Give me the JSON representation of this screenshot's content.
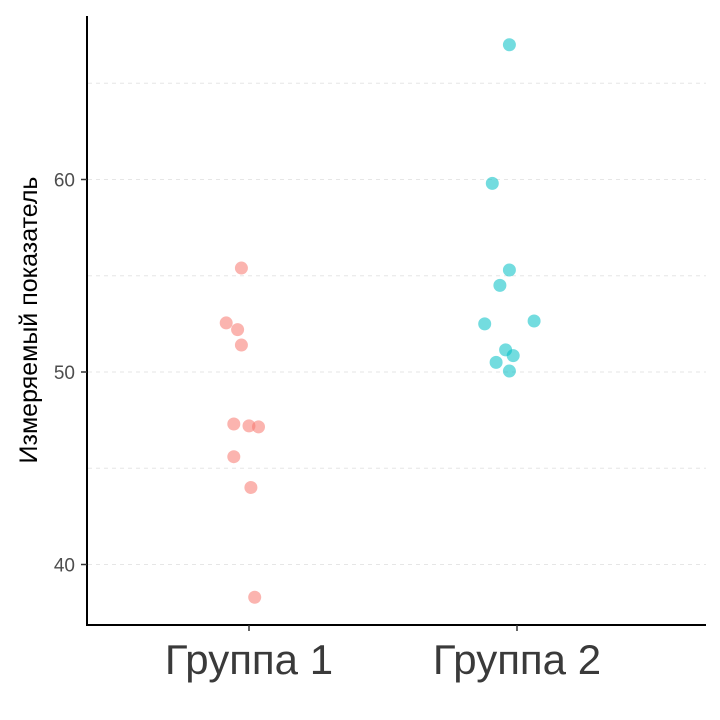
{
  "chart_data": {
    "type": "scatter",
    "title": "",
    "xlabel": "",
    "ylabel": "Измеряемый показатель",
    "categories": [
      "Группа 1",
      "Группа 2"
    ],
    "ylim": [
      37,
      68.5
    ],
    "yticks": [
      40,
      50,
      60
    ],
    "minor_gridlines": [
      45,
      55,
      65
    ],
    "grid": "horizontal dashed, faint",
    "legend": "none",
    "series": [
      {
        "category": "Группа 1",
        "color": "#F8766D",
        "points": [
          {
            "jitter": -0.04,
            "y": 55.4
          },
          {
            "jitter": -0.12,
            "y": 52.55
          },
          {
            "jitter": -0.06,
            "y": 52.2
          },
          {
            "jitter": -0.04,
            "y": 51.4
          },
          {
            "jitter": -0.08,
            "y": 47.3
          },
          {
            "jitter": 0.0,
            "y": 47.2
          },
          {
            "jitter": 0.05,
            "y": 47.15
          },
          {
            "jitter": -0.08,
            "y": 45.6
          },
          {
            "jitter": 0.01,
            "y": 44.0
          },
          {
            "jitter": 0.03,
            "y": 38.3
          }
        ]
      },
      {
        "category": "Группа 2",
        "color": "#00BFC4",
        "points": [
          {
            "jitter": -0.04,
            "y": 67.0
          },
          {
            "jitter": -0.13,
            "y": 59.8
          },
          {
            "jitter": -0.04,
            "y": 55.3
          },
          {
            "jitter": -0.09,
            "y": 54.5
          },
          {
            "jitter": -0.17,
            "y": 52.5
          },
          {
            "jitter": 0.09,
            "y": 52.65
          },
          {
            "jitter": -0.06,
            "y": 51.15
          },
          {
            "jitter": -0.02,
            "y": 50.85
          },
          {
            "jitter": -0.11,
            "y": 50.5
          },
          {
            "jitter": -0.04,
            "y": 50.05
          }
        ]
      }
    ]
  }
}
